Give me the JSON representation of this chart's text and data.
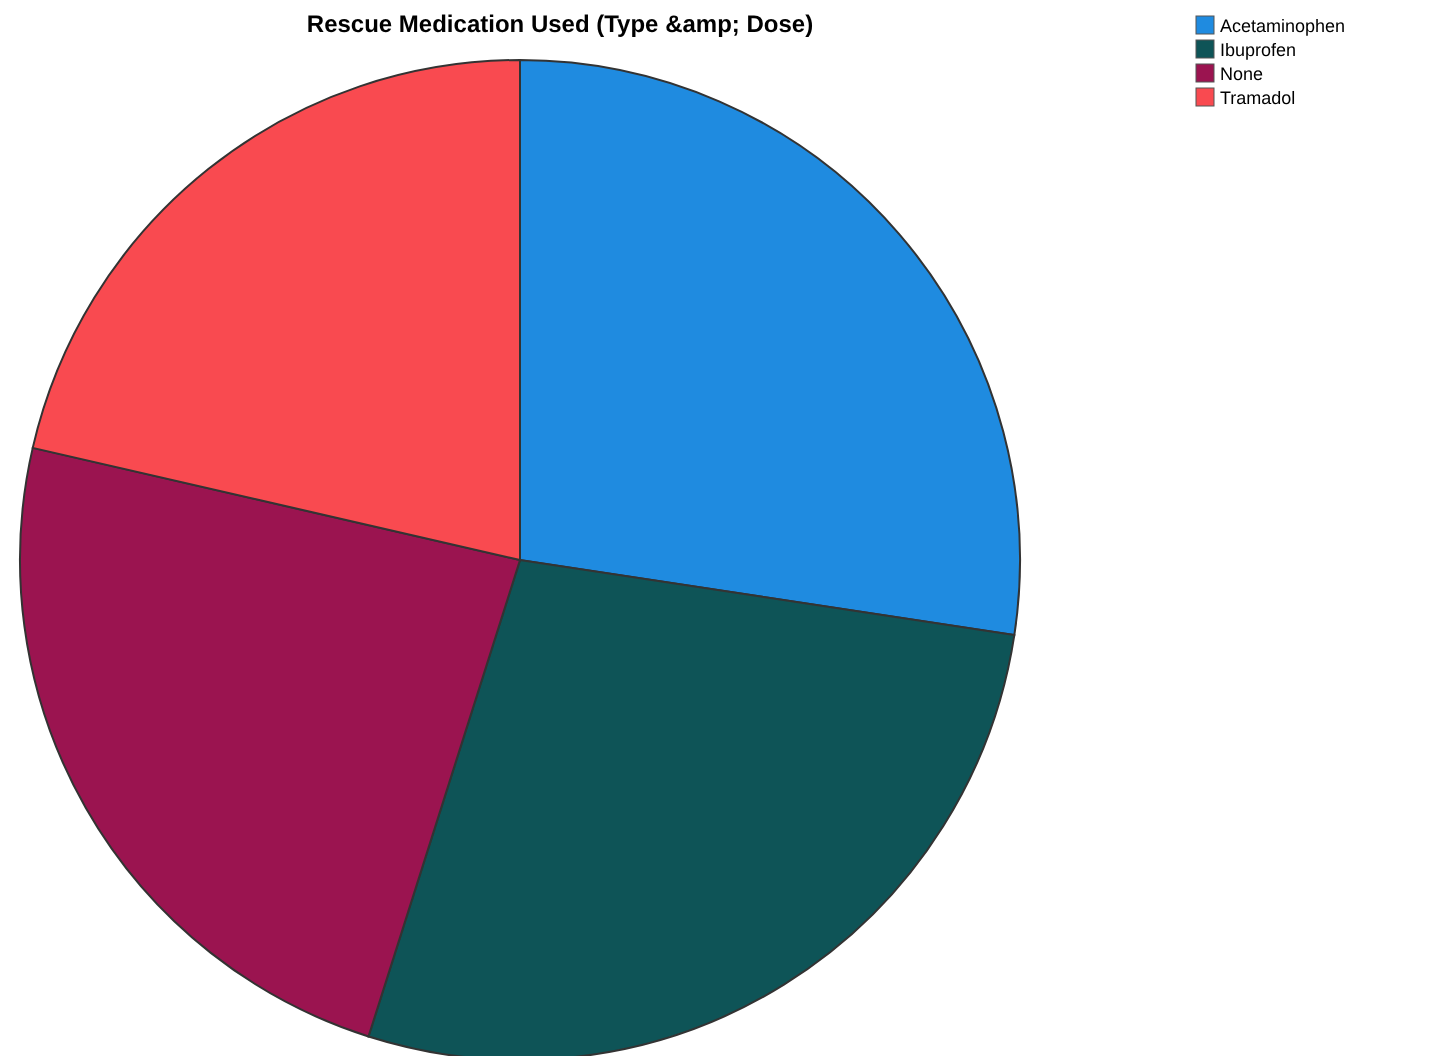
{
  "chart_data": {
    "type": "pie",
    "title": "Rescue Medication Used (Type &amp; Dose)",
    "categories": [
      "Acetaminophen",
      "Ibuprofen",
      "None",
      "Tramadol"
    ],
    "values": [
      27.4,
      27.5,
      23.7,
      21.4
    ],
    "colors": [
      "#1f8be0",
      "#0e5457",
      "#9b1450",
      "#f94a50"
    ],
    "legend": "top right"
  }
}
